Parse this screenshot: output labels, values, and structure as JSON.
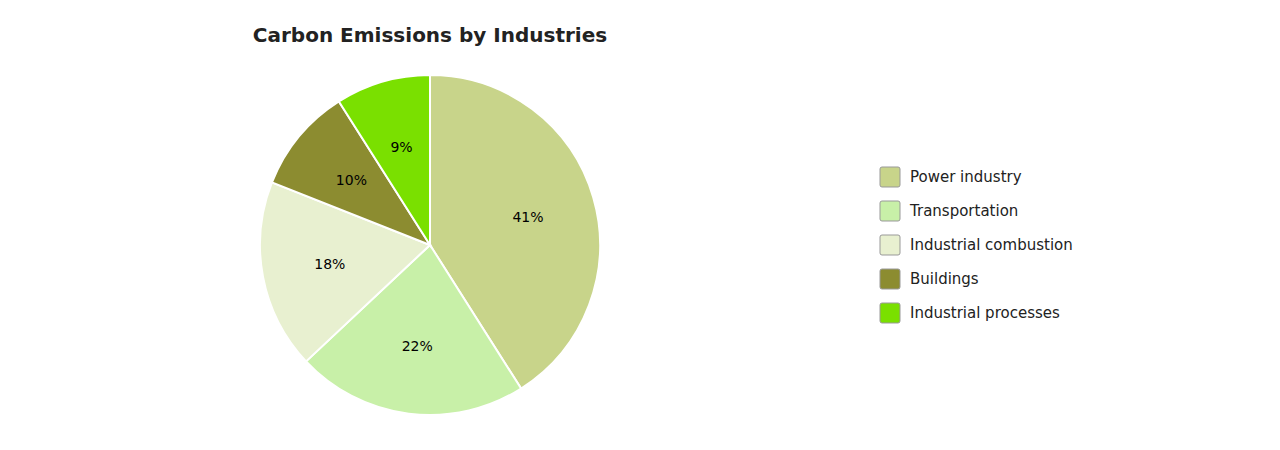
{
  "chart_data": {
    "type": "pie",
    "title": "Carbon Emissions by Industries",
    "categories": [
      "Power industry",
      "Transportation",
      "Industrial combustion",
      "Buildings",
      "Industrial processes"
    ],
    "values": [
      41,
      22,
      18,
      10,
      9
    ],
    "value_labels": [
      "41%",
      "22%",
      "18%",
      "10%",
      "9%"
    ],
    "colors": [
      "#c8d48a",
      "#c8f0a8",
      "#e8f0d0",
      "#8c8c30",
      "#7ae000"
    ],
    "data_labels": true,
    "legend": "right"
  }
}
